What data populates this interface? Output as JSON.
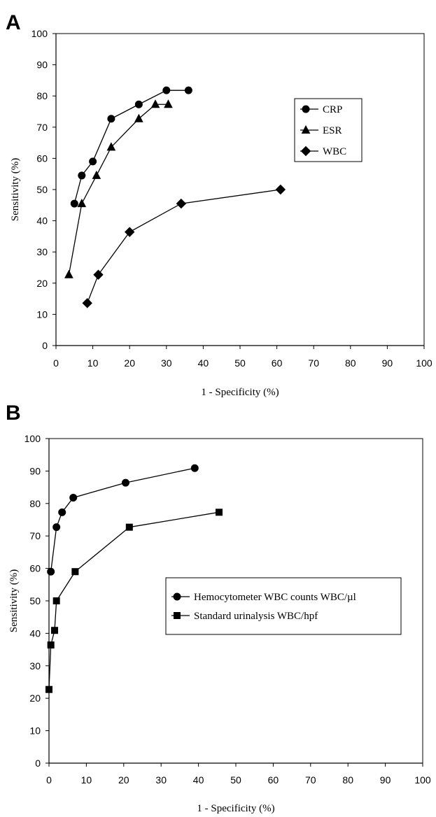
{
  "chart_data": [
    {
      "panel": "A",
      "type": "line",
      "xlabel": "1 - Specificity (%)",
      "ylabel": "Sensitivity (%)",
      "xlim": [
        0,
        100
      ],
      "ylim": [
        0,
        100
      ],
      "x_ticks": [
        "0",
        "10",
        "20",
        "30",
        "40",
        "50",
        "60",
        "70",
        "80",
        "90",
        "100"
      ],
      "y_ticks": [
        "0",
        "10",
        "20",
        "30",
        "40",
        "50",
        "60",
        "70",
        "80",
        "90",
        "100"
      ],
      "legend_position": "right-middle",
      "series": [
        {
          "name": "CRP",
          "marker": "circle",
          "x": [
            5,
            7,
            10,
            15,
            22.5,
            30,
            36
          ],
          "y": [
            45.5,
            54.5,
            59,
            72.7,
            77.3,
            81.8,
            81.8
          ]
        },
        {
          "name": "ESR",
          "marker": "triangle",
          "x": [
            3.5,
            7,
            11,
            15,
            22.5,
            27,
            30.5
          ],
          "y": [
            22.7,
            45.5,
            54.5,
            63.6,
            72.7,
            77.3,
            77.3
          ]
        },
        {
          "name": "WBC",
          "marker": "diamond",
          "x": [
            8.5,
            11.5,
            20,
            34,
            61
          ],
          "y": [
            13.6,
            22.7,
            36.4,
            45.5,
            50
          ]
        }
      ]
    },
    {
      "panel": "B",
      "type": "line",
      "xlabel": "1 - Specificity (%)",
      "ylabel": "Sensitivity (%)",
      "xlim": [
        0,
        100
      ],
      "ylim": [
        0,
        100
      ],
      "x_ticks": [
        "0",
        "10",
        "20",
        "30",
        "40",
        "50",
        "60",
        "70",
        "80",
        "90",
        "100"
      ],
      "y_ticks": [
        "0",
        "10",
        "20",
        "30",
        "40",
        "50",
        "60",
        "70",
        "80",
        "90",
        "100"
      ],
      "legend_position": "right-middle",
      "series": [
        {
          "name": "Hemocytometer WBC counts  WBC/µl",
          "marker": "circle",
          "x": [
            0.5,
            2,
            3.5,
            6.5,
            20.5,
            39
          ],
          "y": [
            59,
            72.7,
            77.3,
            81.8,
            86.4,
            90.9
          ]
        },
        {
          "name": "Standard urinalysis  WBC/hpf",
          "marker": "square",
          "x": [
            0,
            0.5,
            1.5,
            2,
            7,
            21.5,
            45.5
          ],
          "y": [
            22.7,
            36.4,
            40.9,
            50,
            59,
            72.7,
            77.3
          ]
        }
      ]
    }
  ]
}
